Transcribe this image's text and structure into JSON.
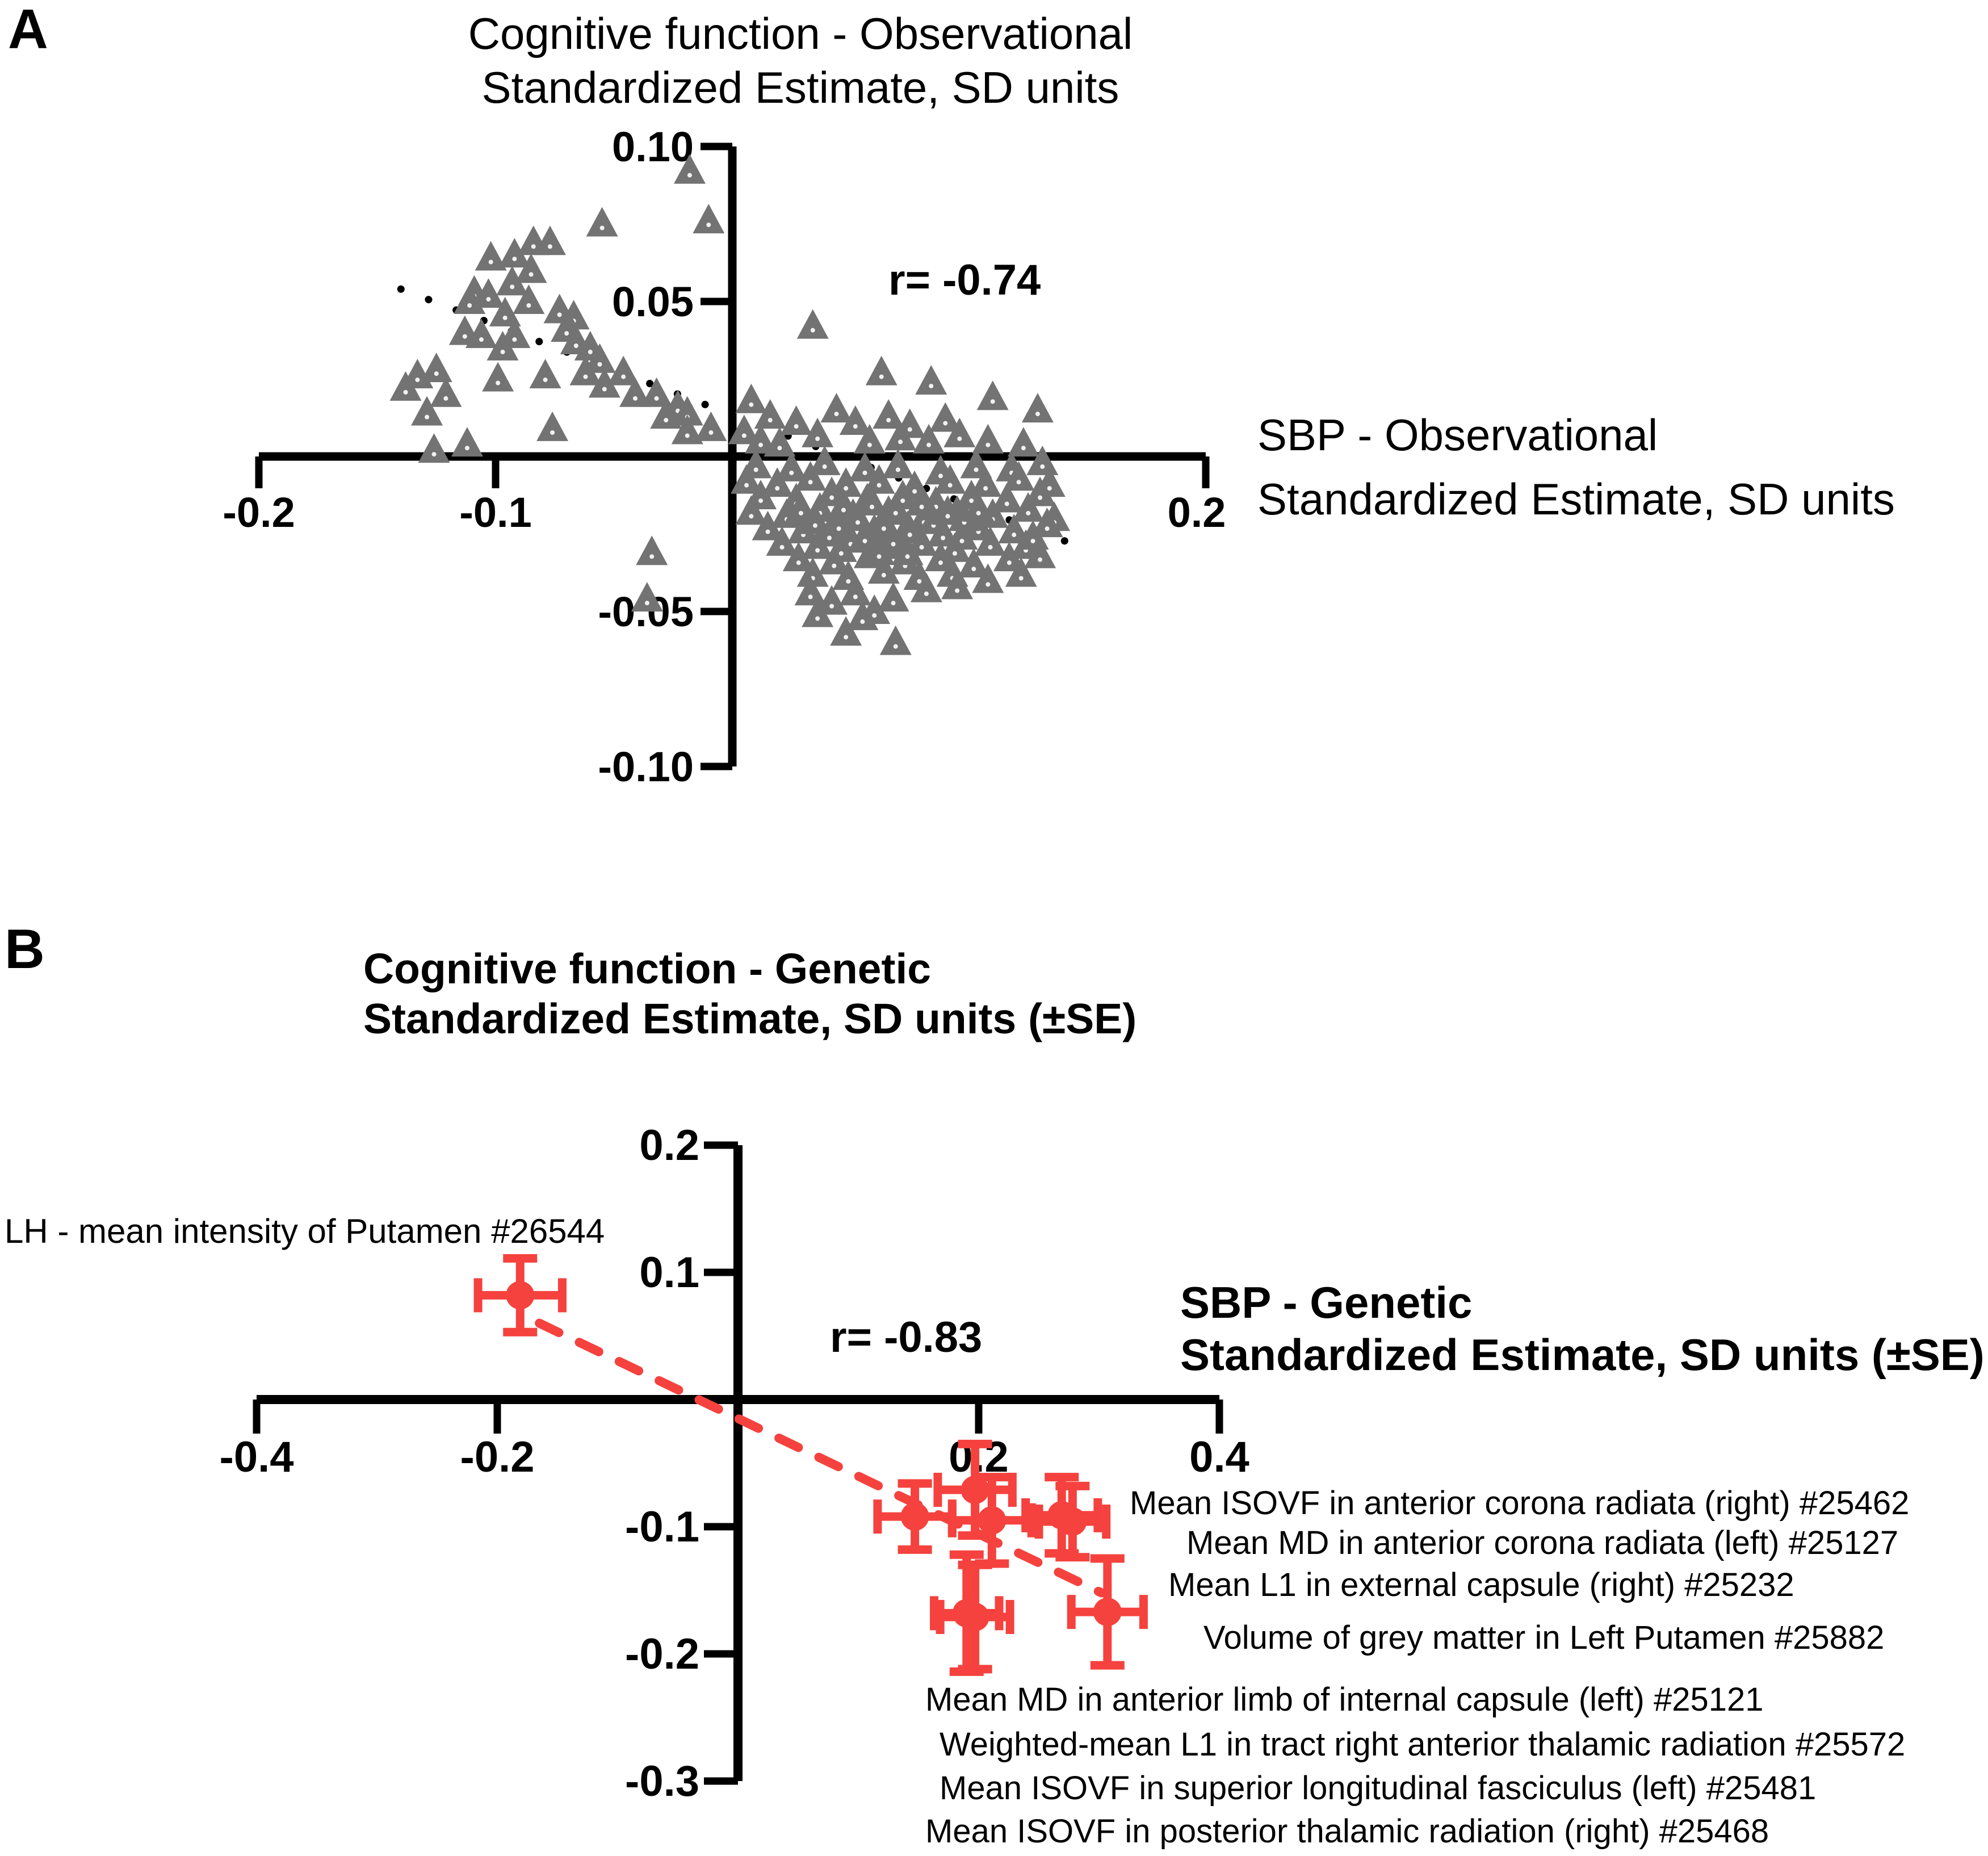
{
  "panel_a": {
    "label": "A",
    "title_line1": "Cognitive function - Observational",
    "title_line2": "Standardized Estimate, SD units",
    "r_text": "r= -0.74",
    "x_title_line1": "SBP - Observational",
    "x_title_line2": "Standardized Estimate, SD units"
  },
  "panel_b": {
    "label": "B",
    "title_line1": "Cognitive function - Genetic",
    "title_line2": "Standardized Estimate, SD units (±SE)",
    "r_text": "r= -0.83",
    "x_title_line1": "SBP - Genetic",
    "x_title_line2": "Standardized Estimate, SD units (±SE)"
  },
  "annotations_b": {
    "top_left_label": "LH - mean intensity of Putamen #26544",
    "right_labels": [
      "Mean ISOVF  in anterior corona radiata (right) #25462",
      "Mean MD  in anterior corona radiata (left) #25127",
      "Mean L1 in external capsule (right) #25232",
      "Volume of grey matter in Left Putamen #25882"
    ],
    "bottom_labels": [
      "Mean MD in anterior limb of internal capsule (left) #25121",
      "Weighted-mean L1 in tract right anterior thalamic radiation #25572",
      "Mean ISOVF in superior longitudinal fasciculus (left) #25481",
      "Mean ISOVF in posterior thalamic radiation (right) #25468"
    ]
  },
  "colors": {
    "triangle_gray": "#737373",
    "red": "#F5423E",
    "axis_black": "#000000"
  },
  "chart_data": [
    {
      "id": "panel_a",
      "type": "scatter",
      "marker": "triangle",
      "marker_color": "#737373",
      "title": "Cognitive function - Observational Standardized Estimate, SD units",
      "xlabel": "SBP - Observational Standardized Estimate, SD units",
      "annotation": "r= -0.74",
      "xlim": [
        -0.2,
        0.2
      ],
      "ylim": [
        -0.1,
        0.1
      ],
      "grid": false,
      "xticks": [
        {
          "v": -0.2,
          "label": "-0.2"
        },
        {
          "v": -0.1,
          "label": "-0.1"
        },
        {
          "v": 0.2,
          "label": "0.2"
        }
      ],
      "yticks": [
        {
          "v": 0.1,
          "label": "0.10"
        },
        {
          "v": 0.05,
          "label": "0.05"
        },
        {
          "v": -0.05,
          "label": "-0.05"
        },
        {
          "v": -0.1,
          "label": "-0.10"
        }
      ],
      "trendline": {
        "style": "dotted",
        "color": "#000000",
        "x1": -0.14,
        "y1": 0.054,
        "x2": 0.143,
        "y2": -0.028
      },
      "points": [
        [
          -0.092,
          0.065
        ],
        [
          -0.084,
          0.069
        ],
        [
          -0.077,
          0.069
        ],
        [
          -0.085,
          0.06
        ],
        [
          -0.093,
          0.056
        ],
        [
          -0.102,
          0.064
        ],
        [
          -0.109,
          0.053
        ],
        [
          -0.103,
          0.052
        ],
        [
          -0.111,
          0.05
        ],
        [
          -0.086,
          0.05
        ],
        [
          -0.096,
          0.046
        ],
        [
          -0.106,
          0.039
        ],
        [
          -0.113,
          0.04
        ],
        [
          -0.092,
          0.039
        ],
        [
          -0.097,
          0.035
        ],
        [
          -0.099,
          0.025
        ],
        [
          -0.079,
          0.026
        ],
        [
          -0.067,
          0.045
        ],
        [
          -0.073,
          0.047
        ],
        [
          -0.07,
          0.041
        ],
        [
          -0.066,
          0.037
        ],
        [
          -0.06,
          0.035
        ],
        [
          -0.056,
          0.031
        ],
        [
          -0.062,
          0.027
        ],
        [
          -0.054,
          0.023
        ],
        [
          -0.133,
          0.026
        ],
        [
          -0.125,
          0.028
        ],
        [
          -0.129,
          0.014
        ],
        [
          -0.121,
          0.02
        ],
        [
          -0.138,
          0.022
        ],
        [
          -0.126,
          0.002
        ],
        [
          -0.112,
          0.004
        ],
        [
          -0.055,
          0.075
        ],
        [
          -0.018,
          0.092
        ],
        [
          -0.01,
          0.076
        ],
        [
          -0.046,
          0.027
        ],
        [
          -0.041,
          0.02
        ],
        [
          -0.032,
          0.02
        ],
        [
          -0.023,
          0.016
        ],
        [
          -0.019,
          0.014
        ],
        [
          -0.019,
          0.008
        ],
        [
          -0.028,
          0.013
        ],
        [
          -0.036,
          -0.046
        ],
        [
          -0.034,
          -0.031
        ],
        [
          -0.076,
          0.009
        ],
        [
          -0.009,
          0.009
        ],
        [
          0.034,
          0.042
        ],
        [
          0.063,
          0.027
        ],
        [
          0.084,
          0.024
        ],
        [
          0.008,
          0.018
        ],
        [
          0.016,
          0.013
        ],
        [
          0.027,
          0.011
        ],
        [
          0.044,
          0.015
        ],
        [
          0.052,
          0.011
        ],
        [
          0.066,
          0.013
        ],
        [
          0.075,
          0.01
        ],
        [
          0.09,
          0.012
        ],
        [
          0.108,
          0.005
        ],
        [
          0.123,
          0.004
        ],
        [
          0.11,
          0.019
        ],
        [
          0.129,
          0.015
        ],
        [
          0.005,
          0.008
        ],
        [
          0.012,
          0.005
        ],
        [
          0.036,
          0.007
        ],
        [
          0.058,
          0.005
        ],
        [
          0.071,
          0.006
        ],
        [
          0.083,
          0.005
        ],
        [
          0.096,
          0.007
        ],
        [
          0.02,
          0.004
        ],
        [
          0.01,
          -0.003
        ],
        [
          0.025,
          -0.004
        ],
        [
          0.039,
          -0.002
        ],
        [
          0.056,
          -0.004
        ],
        [
          0.07,
          -0.003
        ],
        [
          0.088,
          -0.005
        ],
        [
          0.103,
          -0.003
        ],
        [
          0.118,
          -0.004
        ],
        [
          0.131,
          -0.002
        ],
        [
          0.006,
          -0.008
        ],
        [
          0.019,
          -0.009
        ],
        [
          0.033,
          -0.007
        ],
        [
          0.048,
          -0.009
        ],
        [
          0.062,
          -0.008
        ],
        [
          0.077,
          -0.01
        ],
        [
          0.092,
          -0.008
        ],
        [
          0.107,
          -0.009
        ],
        [
          0.121,
          -0.007
        ],
        [
          0.134,
          -0.009
        ],
        [
          0.012,
          -0.013
        ],
        [
          0.027,
          -0.014
        ],
        [
          0.042,
          -0.012
        ],
        [
          0.057,
          -0.014
        ],
        [
          0.072,
          -0.013
        ],
        [
          0.086,
          -0.015
        ],
        [
          0.101,
          -0.013
        ],
        [
          0.116,
          -0.014
        ],
        [
          0.13,
          -0.012
        ],
        [
          0.008,
          -0.018
        ],
        [
          0.023,
          -0.019
        ],
        [
          0.037,
          -0.017
        ],
        [
          0.051,
          -0.019
        ],
        [
          0.066,
          -0.018
        ],
        [
          0.081,
          -0.02
        ],
        [
          0.095,
          -0.018
        ],
        [
          0.11,
          -0.019
        ],
        [
          0.125,
          -0.017
        ],
        [
          0.136,
          -0.02
        ],
        [
          0.015,
          -0.023
        ],
        [
          0.03,
          -0.024
        ],
        [
          0.045,
          -0.022
        ],
        [
          0.06,
          -0.024
        ],
        [
          0.074,
          -0.023
        ],
        [
          0.089,
          -0.025
        ],
        [
          0.104,
          -0.023
        ],
        [
          0.119,
          -0.024
        ],
        [
          0.133,
          -0.022
        ],
        [
          0.021,
          -0.028
        ],
        [
          0.036,
          -0.029
        ],
        [
          0.05,
          -0.027
        ],
        [
          0.065,
          -0.029
        ],
        [
          0.08,
          -0.028
        ],
        [
          0.094,
          -0.03
        ],
        [
          0.109,
          -0.028
        ],
        [
          0.124,
          -0.029
        ],
        [
          0.127,
          -0.026
        ],
        [
          0.028,
          -0.033
        ],
        [
          0.043,
          -0.034
        ],
        [
          0.058,
          -0.032
        ],
        [
          0.073,
          -0.034
        ],
        [
          0.088,
          -0.033
        ],
        [
          0.102,
          -0.035
        ],
        [
          0.117,
          -0.033
        ],
        [
          0.13,
          -0.032
        ],
        [
          0.034,
          -0.038
        ],
        [
          0.049,
          -0.039
        ],
        [
          0.064,
          -0.037
        ],
        [
          0.079,
          -0.039
        ],
        [
          0.093,
          -0.038
        ],
        [
          0.108,
          -0.04
        ],
        [
          0.122,
          -0.038
        ],
        [
          0.033,
          -0.044
        ],
        [
          0.042,
          -0.047
        ],
        [
          0.052,
          -0.044
        ],
        [
          0.06,
          -0.05
        ],
        [
          0.036,
          -0.051
        ],
        [
          0.048,
          -0.057
        ],
        [
          0.055,
          -0.052
        ],
        [
          0.069,
          -0.06
        ],
        [
          0.068,
          -0.046
        ],
        [
          0.082,
          -0.043
        ],
        [
          0.095,
          -0.042
        ],
        [
          0.047,
          -0.016
        ],
        [
          0.053,
          -0.02
        ],
        [
          0.059,
          -0.015
        ],
        [
          0.064,
          -0.022
        ],
        [
          0.069,
          -0.017
        ],
        [
          0.075,
          -0.024
        ],
        [
          0.08,
          -0.015
        ],
        [
          0.085,
          -0.021
        ],
        [
          0.091,
          -0.018
        ],
        [
          0.097,
          -0.026
        ],
        [
          0.056,
          -0.026
        ],
        [
          0.062,
          -0.031
        ],
        [
          0.068,
          -0.027
        ],
        [
          0.074,
          -0.031
        ],
        [
          0.041,
          -0.025
        ],
        [
          0.035,
          -0.021
        ],
        [
          0.029,
          -0.017
        ],
        [
          0.046,
          -0.03
        ],
        [
          0.098,
          -0.02
        ],
        [
          0.104,
          -0.017
        ]
      ]
    },
    {
      "id": "panel_b",
      "type": "scatter",
      "marker": "circle",
      "error_bars": "both",
      "marker_color": "#F5423E",
      "title": "Cognitive function - Genetic Standardized Estimate, SD units (±SE)",
      "xlabel": "SBP - Genetic Standardized Estimate, SD units (±SE)",
      "annotation": "r= -0.83",
      "xlim": [
        -0.4,
        0.4
      ],
      "ylim": [
        -0.3,
        0.2
      ],
      "grid": false,
      "xticks": [
        {
          "v": -0.4,
          "label": "-0.4"
        },
        {
          "v": -0.2,
          "label": "-0.2"
        },
        {
          "v": 0.2,
          "label": "0.2"
        },
        {
          "v": 0.4,
          "label": "0.4"
        }
      ],
      "yticks": [
        {
          "v": 0.2,
          "label": "0.2"
        },
        {
          "v": 0.1,
          "label": "0.1"
        },
        {
          "v": -0.1,
          "label": "-0.1"
        },
        {
          "v": -0.2,
          "label": "-0.2"
        },
        {
          "v": -0.3,
          "label": "-0.3"
        }
      ],
      "trendline": {
        "style": "dashed",
        "color": "#F5423E",
        "x1": -0.165,
        "y1": 0.06,
        "x2": 0.302,
        "y2": -0.152
      },
      "points": [
        {
          "x": -0.181,
          "y": 0.082,
          "xerr": 0.035,
          "yerr": 0.029,
          "label": "LH - mean intensity of Putamen #26544"
        },
        {
          "x": 0.197,
          "y": -0.071,
          "xerr": 0.031,
          "yerr": 0.036,
          "label": "Mean ISOVF  in anterior corona radiata (right) #25462"
        },
        {
          "x": 0.147,
          "y": -0.092,
          "xerr": 0.031,
          "yerr": 0.026,
          "label": "Mean MD  in anterior corona radiata (left) #25127"
        },
        {
          "x": 0.211,
          "y": -0.095,
          "xerr": 0.033,
          "yerr": 0.034,
          "label": "Mean L1 in external capsule (right) #25232"
        },
        {
          "x": 0.269,
          "y": -0.091,
          "xerr": 0.03,
          "yerr": 0.03,
          "label": "Volume of grey matter in Left Putamen #25882"
        },
        {
          "x": 0.278,
          "y": -0.096,
          "xerr": 0.028,
          "yerr": 0.028,
          "label": "Mean MD in anterior limb of internal capsule (left) #25121"
        },
        {
          "x": 0.19,
          "y": -0.168,
          "xerr": 0.027,
          "yerr": 0.046,
          "label": "Weighted-mean L1 in tract right anterior thalamic radiation #25572"
        },
        {
          "x": 0.197,
          "y": -0.171,
          "xerr": 0.029,
          "yerr": 0.041,
          "label": "Mean ISOVF in superior longitudinal fasciculus (left) #25481"
        },
        {
          "x": 0.307,
          "y": -0.167,
          "xerr": 0.03,
          "yerr": 0.042,
          "label": "Mean ISOVF in posterior thalamic radiation (right) #25468"
        }
      ]
    }
  ]
}
